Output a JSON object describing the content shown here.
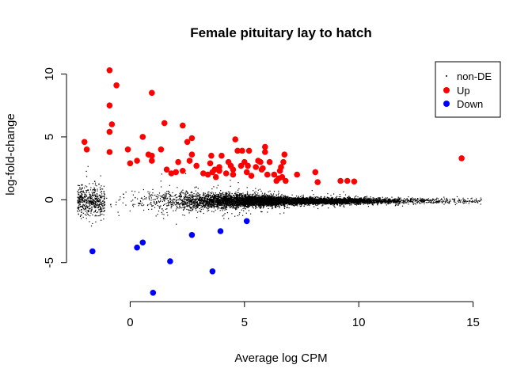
{
  "chart_data": {
    "type": "scatter",
    "title": "Female pituitary lay to hatch",
    "xlabel": "Average log CPM",
    "ylabel": "log-fold-change",
    "xlim": [
      -2.3,
      15.5
    ],
    "ylim": [
      -7.6,
      10.6
    ],
    "x_ticks": [
      0,
      5,
      10,
      15
    ],
    "y_ticks": [
      -5,
      0,
      5,
      10
    ],
    "legend": {
      "position": "top-right",
      "entries": [
        {
          "label": "non-DE",
          "color": "#000000"
        },
        {
          "label": "Up",
          "color": "#ff0000"
        },
        {
          "label": "Down",
          "color": "#0000ff"
        }
      ]
    },
    "series": [
      {
        "name": "Up",
        "color": "#ff0000",
        "points": [
          [
            -2.0,
            4.6
          ],
          [
            -1.9,
            4.0
          ],
          [
            -0.9,
            10.3
          ],
          [
            -0.9,
            7.5
          ],
          [
            -0.8,
            6.0
          ],
          [
            -0.9,
            5.4
          ],
          [
            -0.9,
            3.8
          ],
          [
            -0.6,
            9.1
          ],
          [
            -0.1,
            4.0
          ],
          [
            0.0,
            2.9
          ],
          [
            0.3,
            3.1
          ],
          [
            0.55,
            5.0
          ],
          [
            0.8,
            3.6
          ],
          [
            0.95,
            3.1
          ],
          [
            0.95,
            3.5
          ],
          [
            0.95,
            8.5
          ],
          [
            1.35,
            4.0
          ],
          [
            1.5,
            6.1
          ],
          [
            1.6,
            2.4
          ],
          [
            1.8,
            2.1
          ],
          [
            2.0,
            2.2
          ],
          [
            2.1,
            3.0
          ],
          [
            2.3,
            2.3
          ],
          [
            2.3,
            5.9
          ],
          [
            2.5,
            4.6
          ],
          [
            2.6,
            3.1
          ],
          [
            2.7,
            3.6
          ],
          [
            2.7,
            4.9
          ],
          [
            2.9,
            2.7
          ],
          [
            3.2,
            2.1
          ],
          [
            3.4,
            2.0
          ],
          [
            3.5,
            2.9
          ],
          [
            3.55,
            3.5
          ],
          [
            3.6,
            2.2
          ],
          [
            3.7,
            2.4
          ],
          [
            3.75,
            1.8
          ],
          [
            3.9,
            2.3
          ],
          [
            3.9,
            2.6
          ],
          [
            4.0,
            3.5
          ],
          [
            4.2,
            2.1
          ],
          [
            4.3,
            3.0
          ],
          [
            4.4,
            2.7
          ],
          [
            4.5,
            2.0
          ],
          [
            4.5,
            2.4
          ],
          [
            4.6,
            4.8
          ],
          [
            4.7,
            3.9
          ],
          [
            4.85,
            2.7
          ],
          [
            4.9,
            3.9
          ],
          [
            5.0,
            3.0
          ],
          [
            5.1,
            2.2
          ],
          [
            5.15,
            2.7
          ],
          [
            5.2,
            3.9
          ],
          [
            5.3,
            1.9
          ],
          [
            5.5,
            2.6
          ],
          [
            5.6,
            3.1
          ],
          [
            5.7,
            3.0
          ],
          [
            5.75,
            2.4
          ],
          [
            5.8,
            2.5
          ],
          [
            5.9,
            3.8
          ],
          [
            5.9,
            4.2
          ],
          [
            6.0,
            2.0
          ],
          [
            6.1,
            3.0
          ],
          [
            6.3,
            2.0
          ],
          [
            6.4,
            1.5
          ],
          [
            6.5,
            1.7
          ],
          [
            6.55,
            2.3
          ],
          [
            6.6,
            2.6
          ],
          [
            6.65,
            1.8
          ],
          [
            6.7,
            3.0
          ],
          [
            6.75,
            3.6
          ],
          [
            6.8,
            1.5
          ],
          [
            7.3,
            2.0
          ],
          [
            8.1,
            2.2
          ],
          [
            8.2,
            1.4
          ],
          [
            9.2,
            1.5
          ],
          [
            9.5,
            1.5
          ],
          [
            9.8,
            1.45
          ],
          [
            14.5,
            3.3
          ]
        ]
      },
      {
        "name": "Down",
        "color": "#0000ff",
        "points": [
          [
            -1.65,
            -4.1
          ],
          [
            0.3,
            -3.8
          ],
          [
            0.55,
            -3.4
          ],
          [
            1.75,
            -4.9
          ],
          [
            2.7,
            -2.8
          ],
          [
            3.95,
            -2.5
          ],
          [
            5.1,
            -1.7
          ],
          [
            3.6,
            -5.7
          ],
          [
            1.0,
            -7.4
          ]
        ]
      },
      {
        "name": "non-DE",
        "color": "#000000",
        "generator": {
          "count": 9000,
          "x_range": [
            -2.3,
            15.4
          ],
          "x_mode": 6.5,
          "center_y": -0.1,
          "spread_at_low_x": 1.1,
          "spread_at_high_x": 0.2,
          "seed": 7
        }
      }
    ]
  }
}
